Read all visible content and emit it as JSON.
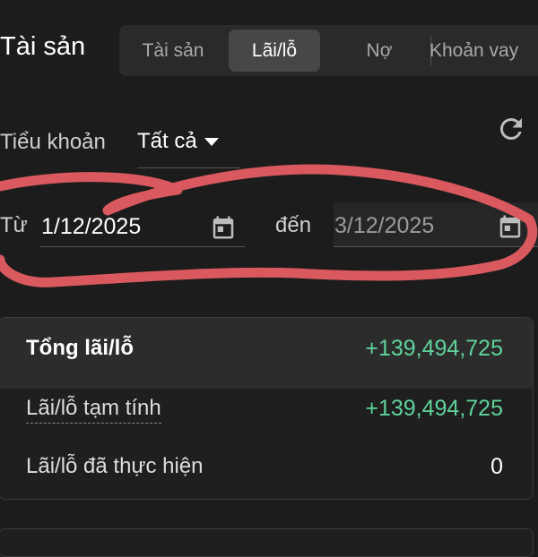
{
  "header": {
    "title": "Tài sản"
  },
  "tabs": [
    {
      "label": "Tài sản",
      "active": false
    },
    {
      "label": "Lãi/lỗ",
      "active": true
    },
    {
      "label": "Nợ",
      "active": false
    },
    {
      "label": "Khoản vay",
      "active": false
    }
  ],
  "filters": {
    "subaccount_label": "Tiểu khoản",
    "subaccount_value": "Tất cả",
    "from_label": "Từ",
    "from_date": "1/12/2025",
    "to_label": "đến",
    "to_date": "3/12/2025",
    "refresh_icon": "refresh-icon",
    "calendar_icon": "calendar-icon"
  },
  "summary": {
    "total_label": "Tổng lãi/lỗ",
    "total_value": "+139,494,725",
    "unrealized_label": "Lãi/lỗ tạm tính",
    "unrealized_value": "+139,494,725",
    "realized_label": "Lãi/lỗ đã thực hiện",
    "realized_value": "0"
  },
  "colors": {
    "positive": "#5fd39a",
    "annotation": "#d9595e",
    "background": "#1c1c1c"
  }
}
